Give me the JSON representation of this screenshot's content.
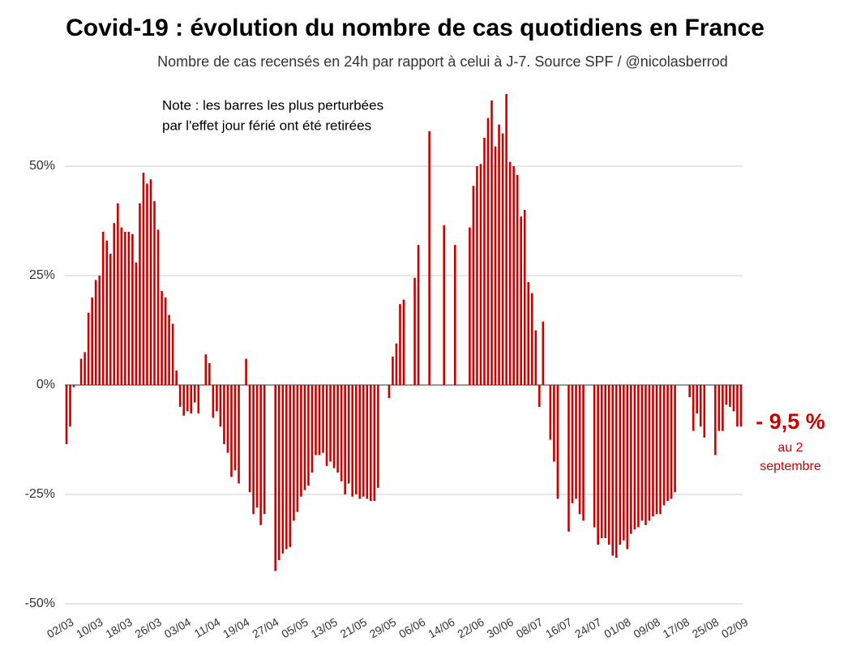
{
  "chart_data": {
    "type": "bar",
    "title": "Covid-19 : évolution du nombre de cas quotidiens en France",
    "subtitle": "Nombre de cas recensés en 24h par rapport à celui à J-7. Source SPF / @nicolasberrod",
    "note": [
      "Note : les barres les plus perturbées",
      "par l'effet jour férié ont été retirées"
    ],
    "callout": [
      "- 9,5 %",
      "au 2",
      "septembre"
    ],
    "color": "#cc0000",
    "ylim": [
      -50,
      70
    ],
    "yticks": [
      {
        "value": -50,
        "label": "-50%"
      },
      {
        "value": -25,
        "label": "-25%"
      },
      {
        "value": 0,
        "label": "0%"
      },
      {
        "value": 25,
        "label": "25%"
      },
      {
        "value": 50,
        "label": "50%"
      }
    ],
    "grid": true,
    "categories": [
      "02/03",
      null,
      null,
      null,
      null,
      null,
      null,
      null,
      "10/03",
      null,
      null,
      null,
      null,
      null,
      null,
      null,
      "18/03",
      null,
      null,
      null,
      null,
      null,
      null,
      null,
      "26/03",
      null,
      null,
      null,
      null,
      null,
      null,
      null,
      "03/04",
      null,
      null,
      null,
      null,
      null,
      null,
      null,
      "11/04",
      null,
      null,
      null,
      null,
      null,
      null,
      null,
      "19/04",
      null,
      null,
      null,
      null,
      null,
      null,
      null,
      "27/04",
      null,
      null,
      null,
      null,
      null,
      null,
      null,
      "05/05",
      null,
      null,
      null,
      null,
      null,
      null,
      null,
      "13/05",
      null,
      null,
      null,
      null,
      null,
      null,
      null,
      "21/05",
      null,
      null,
      null,
      null,
      null,
      null,
      null,
      "29/05",
      null,
      null,
      null,
      null,
      null,
      null,
      null,
      "06/06",
      null,
      null,
      null,
      null,
      null,
      null,
      null,
      "14/06",
      null,
      null,
      null,
      null,
      null,
      null,
      null,
      "22/06",
      null,
      null,
      null,
      null,
      null,
      null,
      null,
      "30/06",
      null,
      null,
      null,
      null,
      null,
      null,
      null,
      "08/07",
      null,
      null,
      null,
      null,
      null,
      null,
      null,
      "16/07",
      null,
      null,
      null,
      null,
      null,
      null,
      null,
      "24/07",
      null,
      null,
      null,
      null,
      null,
      null,
      null,
      "01/08",
      null,
      null,
      null,
      null,
      null,
      null,
      null,
      "09/08",
      null,
      null,
      null,
      null,
      null,
      null,
      null,
      "17/08",
      null,
      null,
      null,
      null,
      null,
      null,
      null,
      "25/08",
      null,
      null,
      null,
      null,
      null,
      null,
      null,
      "02/09"
    ],
    "values": [
      -13.5,
      -9.5,
      -0.5,
      null,
      6,
      7.5,
      16.5,
      20,
      24,
      25,
      35,
      33,
      30,
      37,
      41.5,
      36,
      35,
      35,
      34.5,
      28,
      41.5,
      48.5,
      46,
      47,
      42,
      35.5,
      21.5,
      20,
      16,
      14,
      3.3,
      -5,
      -7,
      -6,
      -6.5,
      -4,
      -6.5,
      null,
      7,
      5,
      -7.5,
      -6,
      -9.5,
      -13.5,
      -15.5,
      -21,
      -19.5,
      -22.5,
      null,
      6,
      -24.5,
      -29.5,
      -28,
      -32,
      -29.5,
      null,
      null,
      -42.5,
      -40,
      -38.5,
      -37.5,
      -37,
      -31,
      -29,
      -25.5,
      -24,
      -23,
      -20,
      -16,
      -16,
      -15.5,
      -18.5,
      -17.5,
      -19,
      -20,
      -22,
      -25,
      -22.5,
      -25.5,
      -25,
      -26,
      -25.5,
      -26,
      -26.5,
      -26.5,
      -23.5,
      null,
      null,
      -3,
      6.5,
      9.5,
      18.5,
      19.5,
      null,
      null,
      24.5,
      32,
      null,
      null,
      58,
      null,
      null,
      null,
      36.5,
      null,
      null,
      32,
      null,
      null,
      null,
      36,
      45.5,
      50,
      50.5,
      56.5,
      61,
      65,
      54.5,
      59.5,
      57.5,
      66.5,
      51,
      50,
      48,
      38.5,
      40,
      23.5,
      21,
      12.5,
      -5,
      14.5,
      null,
      -12.5,
      -17.5,
      -26,
      null,
      null,
      -33.5,
      -27,
      -26,
      -29.5,
      -31,
      null,
      null,
      -32.5,
      -36.5,
      -35,
      -35,
      -36.5,
      -39,
      -39.5,
      -36.5,
      -35.5,
      -37.5,
      -34,
      -33,
      -32.5,
      -31,
      -32,
      -31,
      -30,
      -29.5,
      -29.5,
      -27.5,
      -26.5,
      -26,
      -24.5,
      null,
      null,
      null,
      -2.8,
      -10.5,
      -6.5,
      -9.5,
      -12,
      null,
      null,
      -16,
      -10.5,
      -10.5,
      -4.5,
      -5,
      -6,
      -9.5,
      -9.5
    ]
  }
}
